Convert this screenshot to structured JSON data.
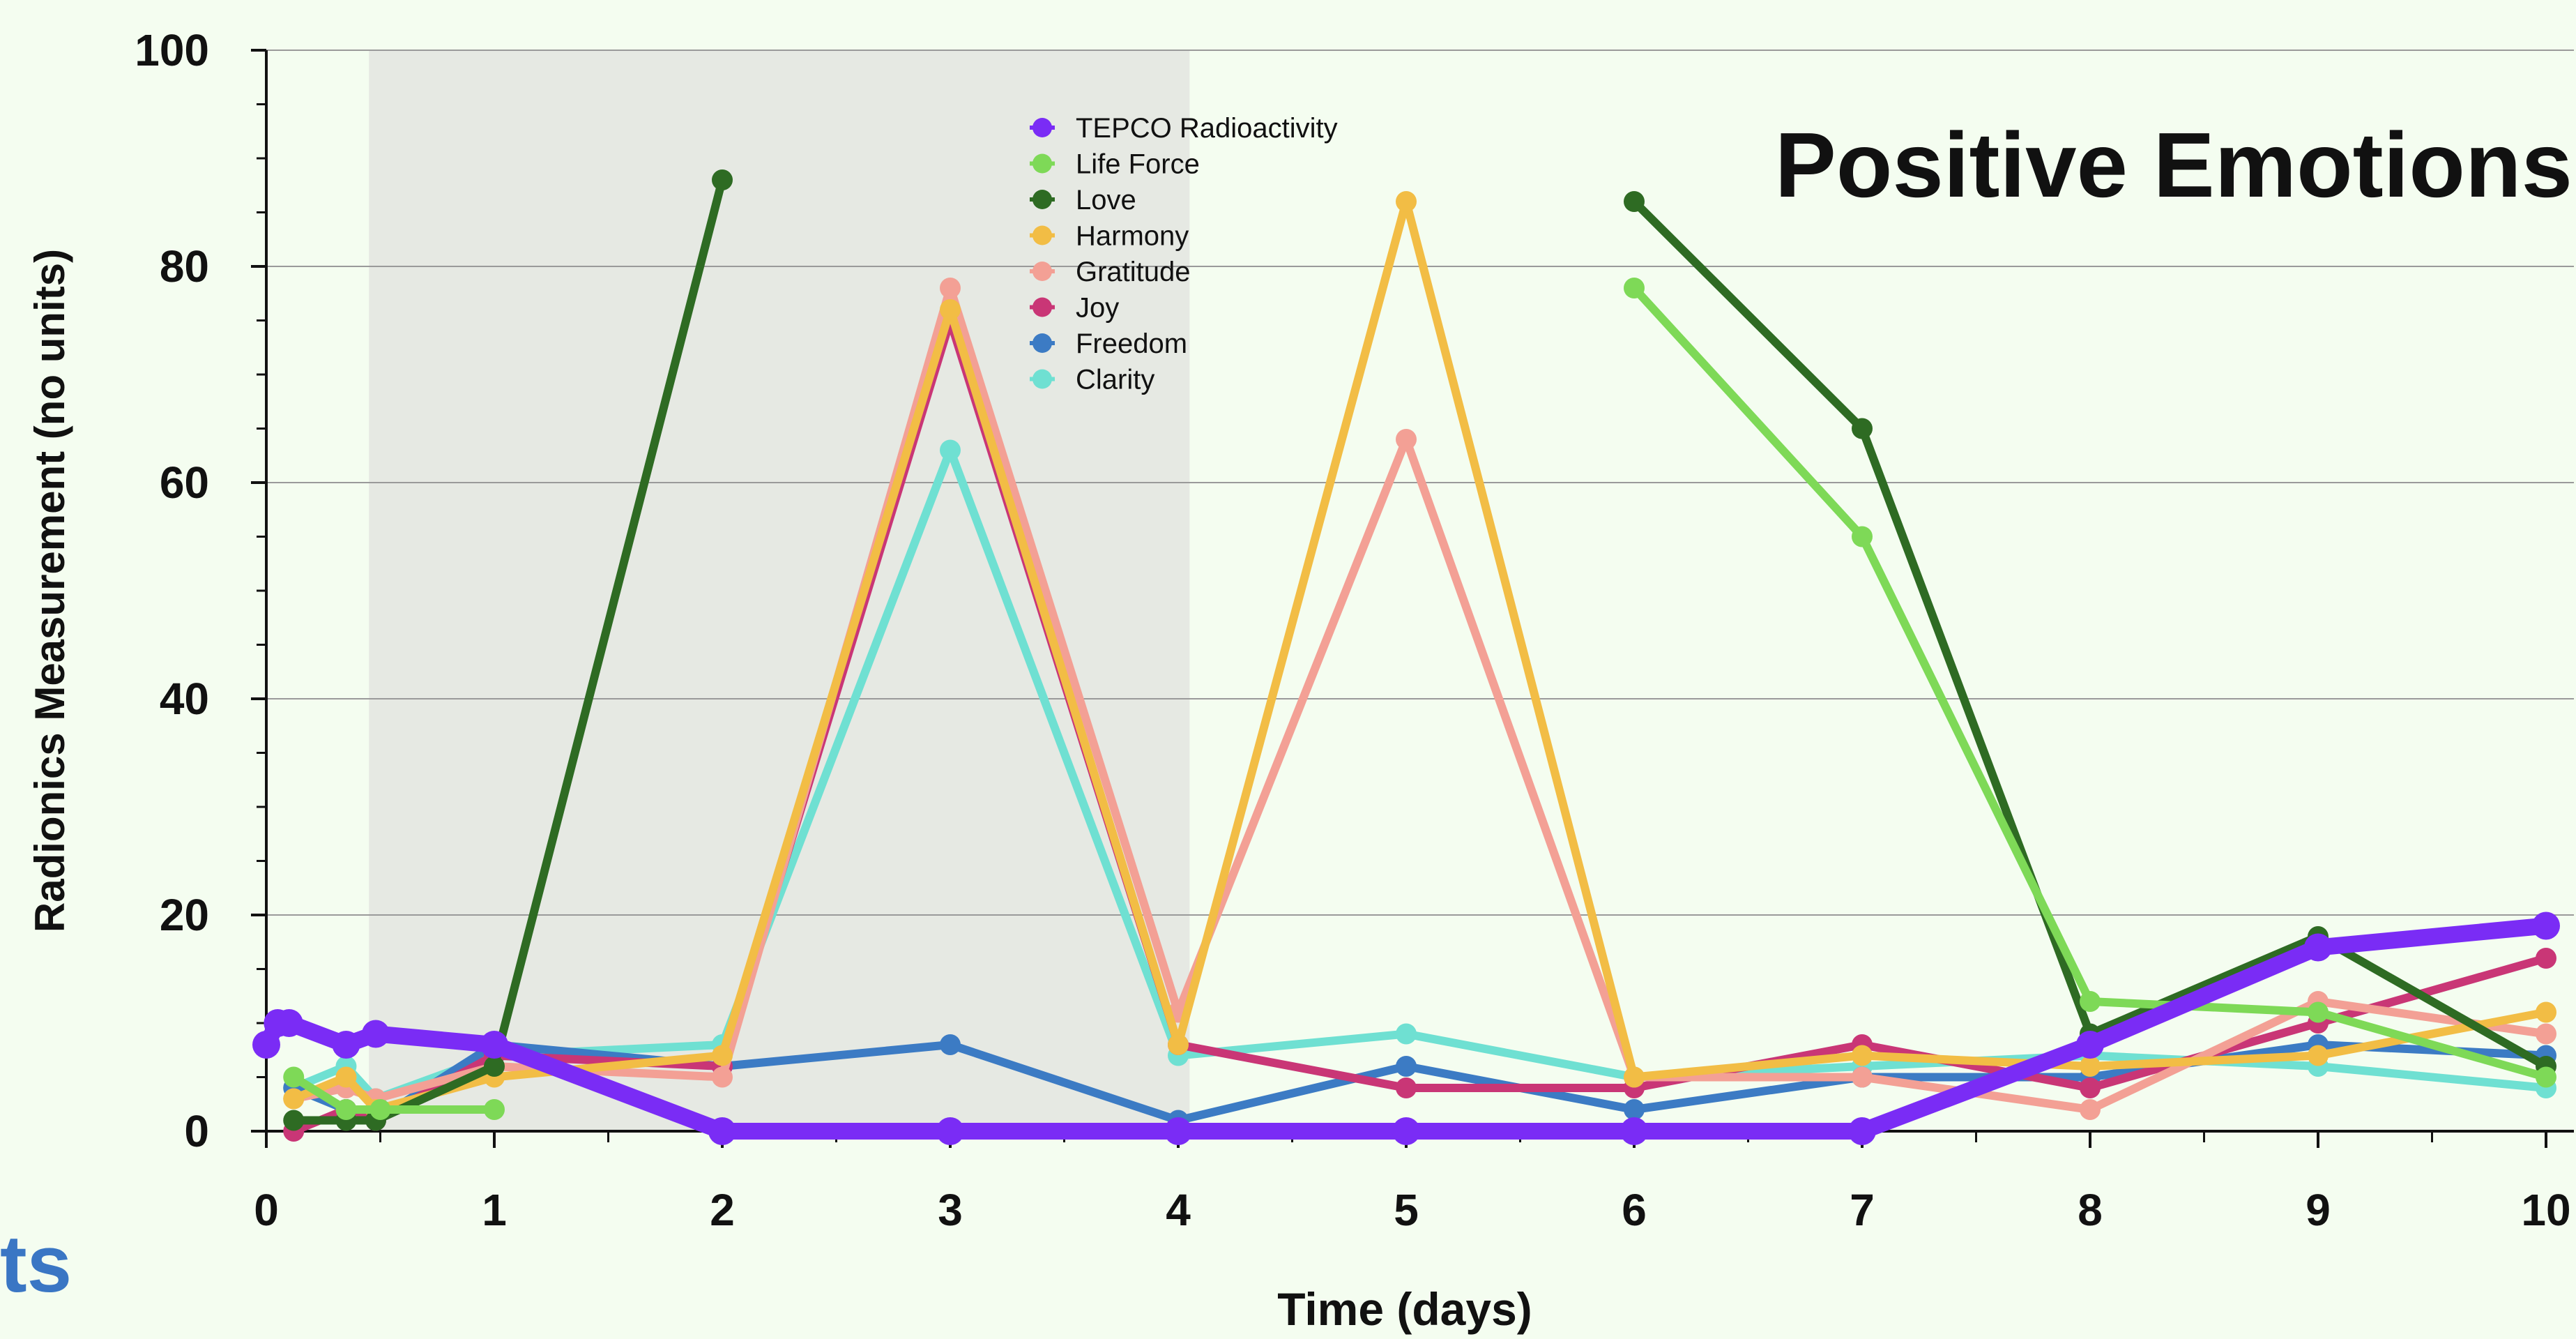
{
  "overlay_title": "Positive Emotions",
  "cut_text": "ts",
  "colors": {
    "background": "#f4fdf0",
    "shaded_band": "#e6e9e3",
    "cut_text": "#3a76c4"
  },
  "chart_data": {
    "type": "line",
    "title": "",
    "xlabel": "Time (days)",
    "ylabel": "Radionics Measurement (no units)",
    "xlim": [
      0,
      10
    ],
    "ylim": [
      0,
      100
    ],
    "xticks": [
      "0",
      "1",
      "2",
      "3",
      "4",
      "5",
      "6",
      "7",
      "8",
      "9",
      "10"
    ],
    "yticks": [
      "0",
      "20",
      "40",
      "60",
      "80",
      "100"
    ],
    "grid": "horizontal",
    "legend_position": "top-center",
    "shaded_region": [
      0.45,
      4.05
    ],
    "series": [
      {
        "name": "TEPCO Radioactivity",
        "color": "#7a2cf5",
        "width": 24,
        "marker": 20,
        "points": [
          [
            0,
            8
          ],
          [
            0.05,
            10
          ],
          [
            0.1,
            10
          ],
          [
            0.35,
            8
          ],
          [
            0.48,
            9
          ],
          [
            1,
            8
          ],
          [
            2,
            0
          ],
          [
            3,
            0
          ],
          [
            4,
            0
          ],
          [
            5,
            0
          ],
          [
            6,
            0
          ],
          [
            7,
            0
          ],
          [
            8,
            8
          ],
          [
            9,
            17
          ],
          [
            10,
            19
          ]
        ]
      },
      {
        "name": "Life Force",
        "color": "#7ed957",
        "width": 12,
        "marker": 15,
        "points": [
          [
            0.12,
            5
          ],
          [
            0.35,
            2
          ],
          [
            0.5,
            2
          ],
          [
            1,
            2
          ],
          [
            null,
            null
          ],
          [
            6,
            78
          ],
          [
            7,
            55
          ],
          [
            8,
            12
          ],
          [
            9,
            11
          ],
          [
            10,
            5
          ]
        ]
      },
      {
        "name": "Love",
        "color": "#2e6b23",
        "width": 12,
        "marker": 15,
        "points": [
          [
            0.12,
            1
          ],
          [
            0.35,
            1
          ],
          [
            0.48,
            1
          ],
          [
            1,
            6
          ],
          [
            2,
            88
          ],
          [
            null,
            null
          ],
          [
            6,
            86
          ],
          [
            7,
            65
          ],
          [
            8,
            9
          ],
          [
            9,
            18
          ],
          [
            10,
            6
          ]
        ]
      },
      {
        "name": "Harmony",
        "color": "#f2bd45",
        "width": 12,
        "marker": 15,
        "points": [
          [
            0.12,
            3
          ],
          [
            0.35,
            5
          ],
          [
            0.48,
            2
          ],
          [
            1,
            5
          ],
          [
            2,
            7
          ],
          [
            3,
            76
          ],
          [
            4,
            8
          ],
          [
            5,
            86
          ],
          [
            6,
            5
          ],
          [
            7,
            7
          ],
          [
            8,
            6
          ],
          [
            9,
            7
          ],
          [
            10,
            11
          ]
        ]
      },
      {
        "name": "Gratitude",
        "color": "#f3a095",
        "width": 12,
        "marker": 15,
        "points": [
          [
            0.12,
            3
          ],
          [
            0.35,
            4
          ],
          [
            0.48,
            3
          ],
          [
            1,
            6
          ],
          [
            2,
            5
          ],
          [
            3,
            78
          ],
          [
            4,
            11
          ],
          [
            5,
            64
          ],
          [
            6,
            5
          ],
          [
            7,
            5
          ],
          [
            8,
            2
          ],
          [
            9,
            12
          ],
          [
            10,
            9
          ]
        ]
      },
      {
        "name": "Joy",
        "color": "#c93676",
        "width": 12,
        "marker": 15,
        "points": [
          [
            0.12,
            0
          ],
          [
            0.35,
            2
          ],
          [
            0.48,
            1
          ],
          [
            1,
            7
          ],
          [
            2,
            6
          ],
          [
            3,
            75
          ],
          [
            4,
            8
          ],
          [
            5,
            4
          ],
          [
            6,
            4
          ],
          [
            7,
            8
          ],
          [
            8,
            4
          ],
          [
            9,
            10
          ],
          [
            10,
            16
          ]
        ]
      },
      {
        "name": "Freedom",
        "color": "#3c7bc4",
        "width": 12,
        "marker": 15,
        "points": [
          [
            0.12,
            4
          ],
          [
            0.35,
            2
          ],
          [
            0.48,
            1
          ],
          [
            1,
            8
          ],
          [
            2,
            6
          ],
          [
            3,
            8
          ],
          [
            4,
            1
          ],
          [
            5,
            6
          ],
          [
            6,
            2
          ],
          [
            7,
            5
          ],
          [
            8,
            5
          ],
          [
            9,
            8
          ],
          [
            10,
            7
          ]
        ]
      },
      {
        "name": "Clarity",
        "color": "#6fe0d2",
        "width": 12,
        "marker": 15,
        "points": [
          [
            0.12,
            4
          ],
          [
            0.35,
            6
          ],
          [
            0.48,
            3
          ],
          [
            1,
            7
          ],
          [
            2,
            8
          ],
          [
            3,
            63
          ],
          [
            4,
            7
          ],
          [
            5,
            9
          ],
          [
            6,
            5
          ],
          [
            7,
            6
          ],
          [
            8,
            7
          ],
          [
            9,
            6
          ],
          [
            10,
            4
          ]
        ]
      }
    ]
  }
}
